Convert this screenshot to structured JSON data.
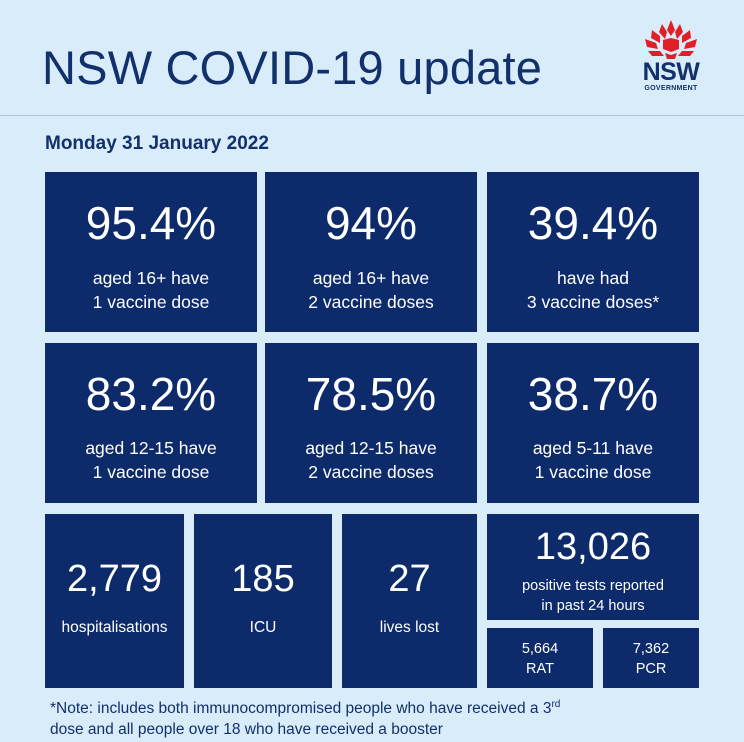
{
  "header": {
    "title": "NSW COVID-19 update",
    "logo": {
      "text": "NSW",
      "subtext": "GOVERNMENT",
      "icon": "waratah-flower-icon",
      "color": "#e11f26"
    }
  },
  "date": "Monday 31 January 2022",
  "stats": [
    {
      "value": "95.4%",
      "line1": "aged 16+ have",
      "line2": "1 vaccine dose"
    },
    {
      "value": "94%",
      "line1": "aged 16+ have",
      "line2": "2 vaccine doses"
    },
    {
      "value": "39.4%",
      "line1": "have had",
      "line2": "3 vaccine doses*"
    },
    {
      "value": "83.2%",
      "line1": "aged 12-15 have",
      "line2": "1 vaccine dose"
    },
    {
      "value": "78.5%",
      "line1": "aged 12-15 have",
      "line2": "2 vaccine doses"
    },
    {
      "value": "38.7%",
      "line1": "aged 5-11 have",
      "line2": "1 vaccine dose"
    }
  ],
  "counts": [
    {
      "value": "2,779",
      "label": "hospitalisations"
    },
    {
      "value": "185",
      "label": "ICU"
    },
    {
      "value": "27",
      "label": "lives lost"
    }
  ],
  "tests": {
    "value": "13,026",
    "line1": "positive tests reported",
    "line2": "in past 24 hours",
    "rat": {
      "value": "5,664",
      "label": "RAT"
    },
    "pcr": {
      "value": "7,362",
      "label": "PCR"
    }
  },
  "note": {
    "part1": "*Note: includes both immunocompromised  people who have received a 3",
    "sup": "rd",
    "part2": "dose and all people over 18 who have received a booster"
  },
  "colors": {
    "background": "#d9ecfa",
    "tile": "#0d2b6b",
    "heading": "#12306b"
  }
}
